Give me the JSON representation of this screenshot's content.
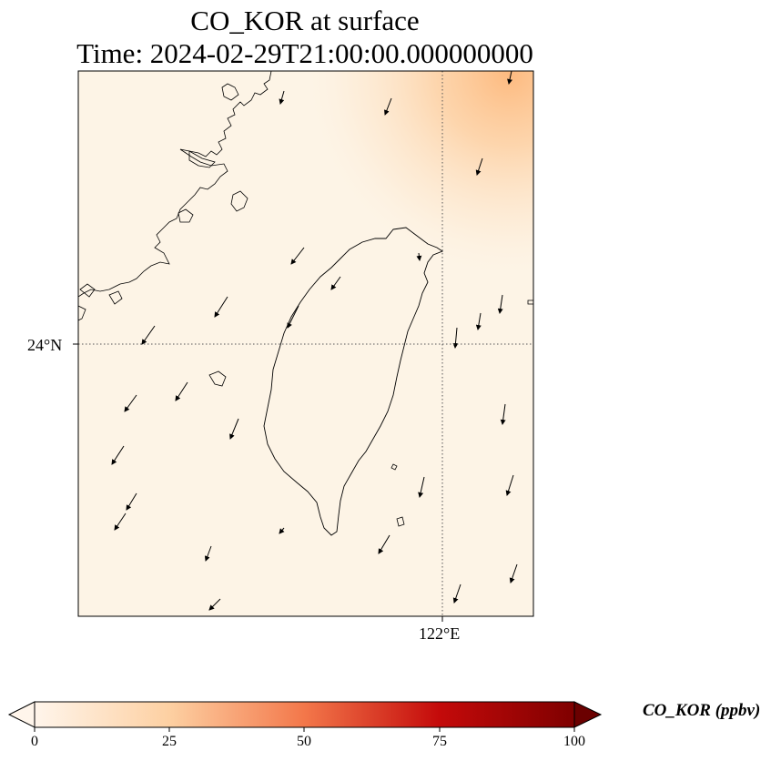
{
  "map": {
    "title_line1": "CO_KOR at surface",
    "title_line2": "Time: 2024-02-29T21:00:00.000000000",
    "lat_label": "24°N",
    "lon_label": "122°E",
    "background_color": "#fdf4e6",
    "plume_color": "#fdbd82"
  },
  "colorbar": {
    "label": "CO_KOR (ppbv)",
    "ticks": [
      "0",
      "25",
      "50",
      "75",
      "100"
    ],
    "range": [
      0,
      100
    ],
    "colors": [
      "#fff5eb",
      "#fdd0a2",
      "#fd8d3c",
      "#d94801",
      "#7f2704"
    ]
  }
}
